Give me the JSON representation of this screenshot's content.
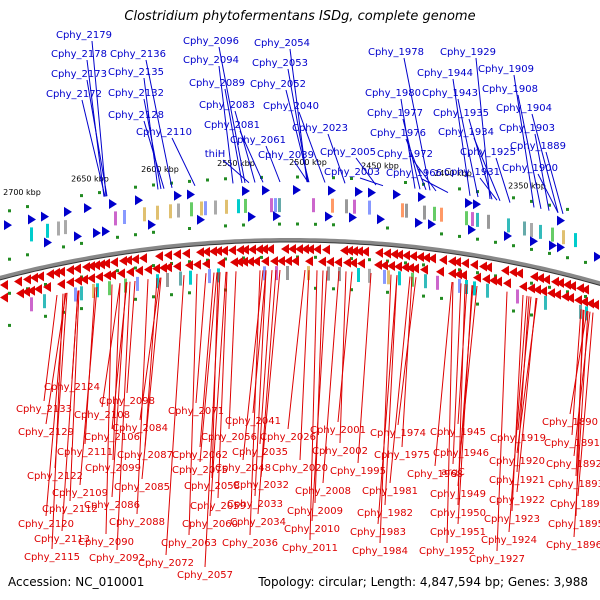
{
  "title": "Clostridium phytofermentans ISDg, complete genome",
  "footer": {
    "accession": "Accession: NC_010001",
    "summary": "Topology: circular; Length: 4,847,594 bp; Genes: 3,988"
  },
  "colors": {
    "forward_strand": "#0000cc",
    "reverse_strand": "#dd0000",
    "backbone": "#888888",
    "gc_marker": "#228b22",
    "forward_label": "#0000cc",
    "reverse_label": "#dd0000",
    "scale_text": "#000000"
  },
  "scale_ticks": [
    "2700 kbp",
    "2650 kbp",
    "2600 kbp",
    "2550 kbp",
    "2500 kbp",
    "2450 kbp",
    "2400 kbp",
    "2350 kbp"
  ],
  "forward_genes": [
    "Cphy_2179",
    "Cphy_2178",
    "Cphy_2173",
    "Cphy_2172",
    "Cphy_2136",
    "Cphy_2135",
    "Cphy_2132",
    "Cphy_2128",
    "Cphy_2110",
    "Cphy_2096",
    "Cphy_2094",
    "Cphy_2089",
    "Cphy_2083",
    "Cphy_2081",
    "thiH",
    "Cphy_2061",
    "Cphy_2054",
    "Cphy_2053",
    "Cphy_2052",
    "Cphy_2040",
    "Cphy_2039",
    "Cphy_2023",
    "Cphy_2005",
    "Cphy_2003",
    "Cphy_1978",
    "Cphy_1980",
    "Cphy_1977",
    "Cphy_1976",
    "Cphy_1972",
    "Cphy_1966",
    "Cphy_1929",
    "Cphy_1944",
    "Cphy_1943",
    "Cphy_1935",
    "Cphy_1934",
    "Cphy_1925",
    "Cphy_1931",
    "Cphy_1909",
    "Cphy_1908",
    "Cphy_1904",
    "Cphy_1903",
    "Cphy_1889",
    "Cphy_1900"
  ],
  "reverse_genes": [
    "Cphy_2124",
    "Cphy_2133",
    "Cphy_2129",
    "Cphy_2122",
    "Cphy_2120",
    "Cphy_2115",
    "Cphy_2108",
    "Cphy_2111",
    "Cphy_2109",
    "Cphy_2112",
    "Cphy_2113",
    "Cphy_2098",
    "Cphy_2106",
    "Cphy_2099",
    "Cphy_2086",
    "Cphy_2090",
    "Cphy_2092",
    "Cphy_2084",
    "Cphy_2087",
    "Cphy_2085",
    "Cphy_2088",
    "Cphy_2072",
    "Cphy_2071",
    "Cphy_2075",
    "Cphy_2059",
    "Cphy_2060",
    "Cphy_2063",
    "Cphy_2057",
    "Cphy_2056",
    "Cphy_2062",
    "Cphy_2058",
    "Cphy_2041",
    "Cphy_2048",
    "Cphy_2035",
    "Cphy_2032",
    "Cphy_2033",
    "Cphy_2034",
    "Cphy_2036",
    "Cphy_2026",
    "Cphy_2020",
    "Cphy_2008",
    "Cphy_2009",
    "Cphy_2010",
    "Cphy_2011",
    "Cphy_2001",
    "Cphy_2002",
    "Cphy_1995",
    "Cphy_1981",
    "Cphy_1982",
    "Cphy_1983",
    "Cphy_1984",
    "Cphy_1974",
    "Cphy_1975",
    "Cphy_1968",
    "Cphy_1945",
    "Cphy_1946",
    "argC",
    "Cphy_1949",
    "Cphy_1950",
    "Cphy_1951",
    "Cphy_1952",
    "Cphy_1919",
    "Cphy_1920",
    "Cphy_1921",
    "Cphy_1922",
    "Cphy_1923",
    "Cphy_1924",
    "Cphy_1927",
    "Cphy_1890",
    "Cphy_1891",
    "Cphy_1892",
    "Cphy_1893",
    "Cphy_1894",
    "Cphy_1895",
    "Cphy_1896"
  ]
}
